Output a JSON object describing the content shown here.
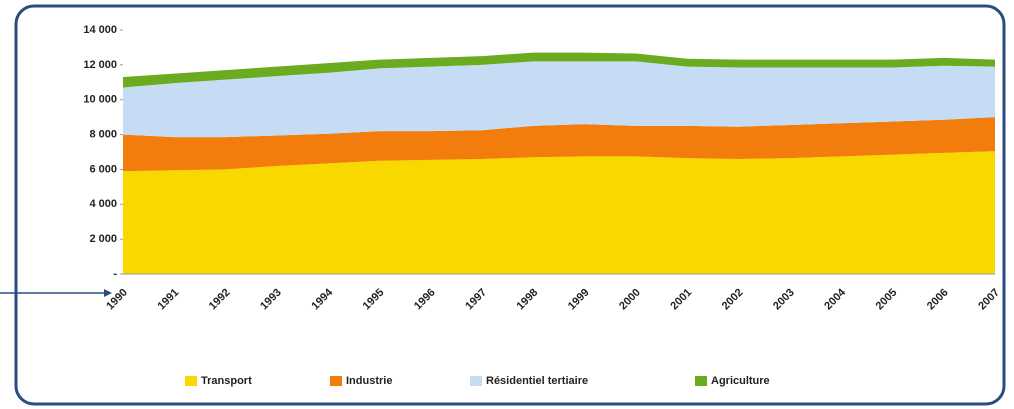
{
  "chart_data": {
    "type": "stacked_area",
    "categories": [
      "1990",
      "1991",
      "1992",
      "1993",
      "1994",
      "1995",
      "1996",
      "1997",
      "1998",
      "1999",
      "2000",
      "2001",
      "2002",
      "2003",
      "2004",
      "2005",
      "2006",
      "2007"
    ],
    "series": [
      {
        "name": "Transport",
        "color": "#f9d800",
        "values": [
          5900,
          5950,
          6000,
          6200,
          6350,
          6500,
          6550,
          6600,
          6700,
          6750,
          6750,
          6650,
          6600,
          6650,
          6750,
          6850,
          6950,
          7050
        ]
      },
      {
        "name": "Industrie",
        "color": "#f27d0c",
        "values": [
          2100,
          1900,
          1850,
          1750,
          1700,
          1700,
          1650,
          1650,
          1800,
          1850,
          1750,
          1850,
          1850,
          1900,
          1900,
          1900,
          1900,
          1950
        ]
      },
      {
        "name": "Résidentiel tertiaire",
        "color": "#c6dcf5",
        "values": [
          2700,
          3100,
          3300,
          3400,
          3500,
          3600,
          3700,
          3750,
          3700,
          3600,
          3700,
          3400,
          3400,
          3300,
          3200,
          3100,
          3100,
          2900
        ]
      },
      {
        "name": "Agriculture",
        "color": "#6aab1f",
        "values": [
          600,
          550,
          550,
          550,
          550,
          500,
          500,
          500,
          500,
          500,
          450,
          450,
          450,
          450,
          450,
          450,
          450,
          400
        ]
      }
    ],
    "ylim": [
      0,
      14000
    ],
    "yticks": [
      {
        "value": 0,
        "label": "-"
      },
      {
        "value": 2000,
        "label": "2 000"
      },
      {
        "value": 4000,
        "label": "4 000"
      },
      {
        "value": 6000,
        "label": "6 000"
      },
      {
        "value": 8000,
        "label": "8 000"
      },
      {
        "value": 10000,
        "label": "10 000"
      },
      {
        "value": 12000,
        "label": "12 000"
      },
      {
        "value": 14000,
        "label": "14 000"
      }
    ],
    "legend": "bottom"
  }
}
